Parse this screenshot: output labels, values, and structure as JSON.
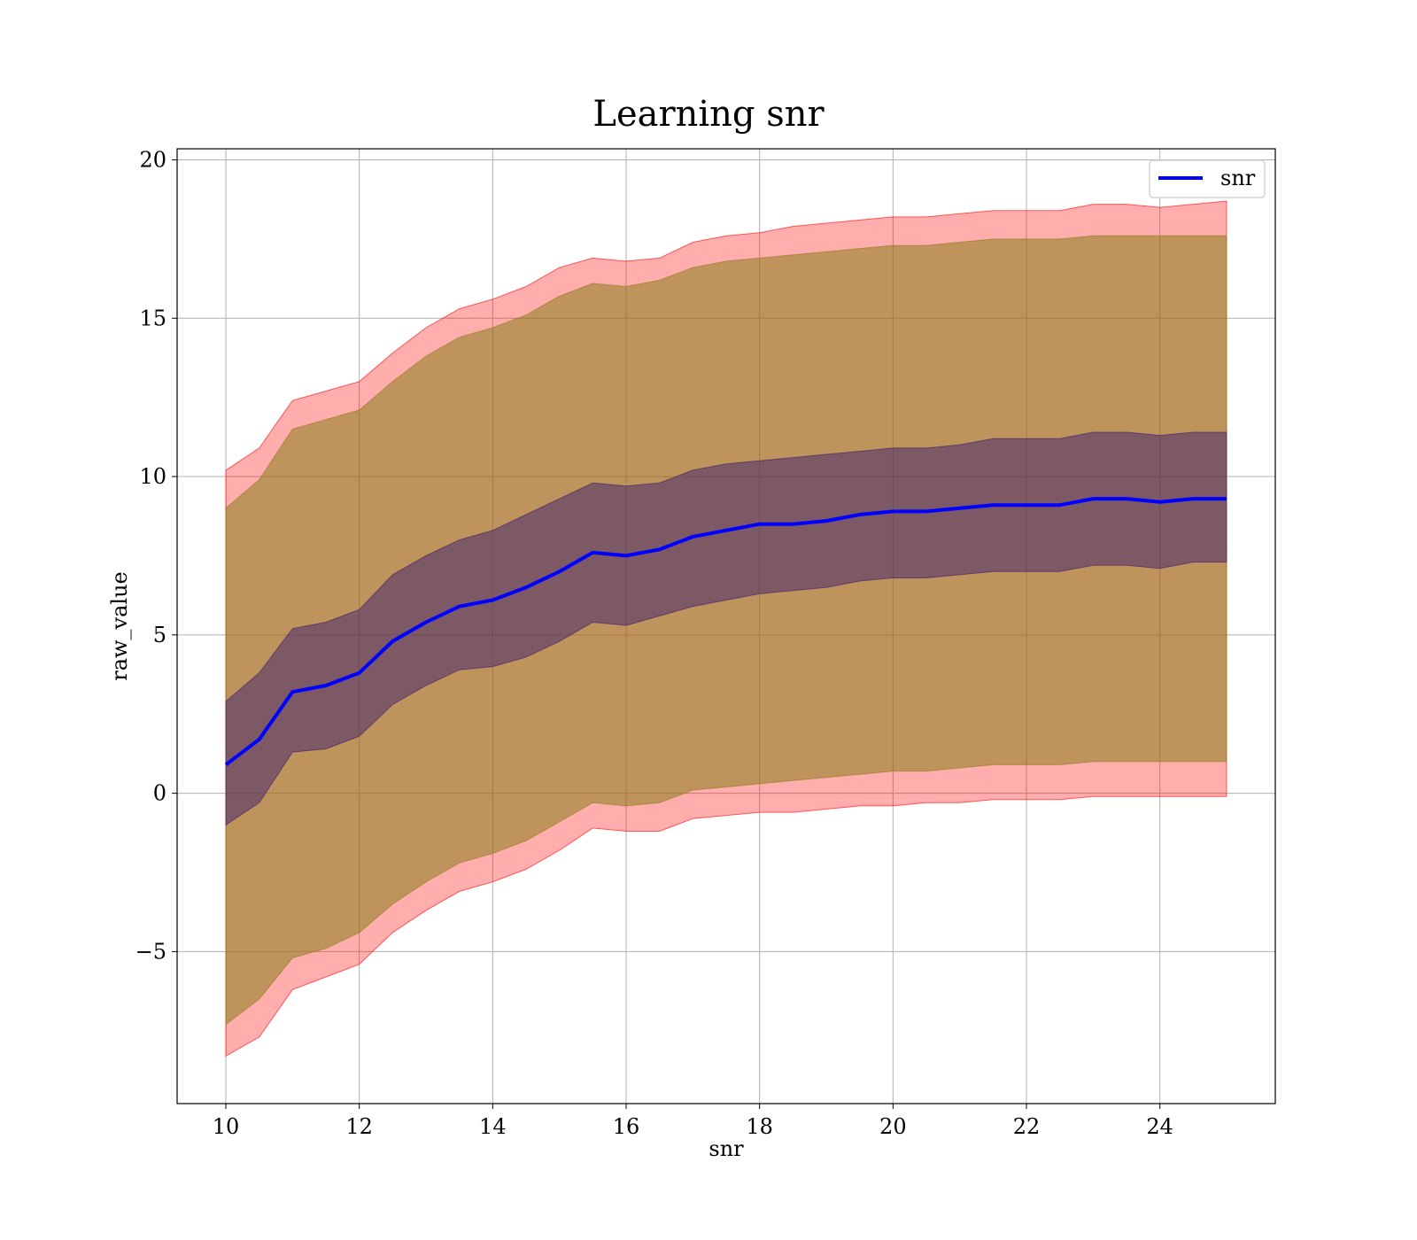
{
  "chart_data": {
    "type": "line",
    "title": "Learning snr",
    "xlabel": "snr",
    "ylabel": "raw_value",
    "xlim": [
      9.27,
      25.73
    ],
    "ylim": [
      -9.8,
      20.35
    ],
    "xticks": [
      10,
      12,
      14,
      16,
      18,
      20,
      22,
      24
    ],
    "yticks": [
      {
        "value": -5,
        "label": "−5"
      },
      {
        "value": 0,
        "label": "0"
      },
      {
        "value": 5,
        "label": "5"
      },
      {
        "value": 10,
        "label": "10"
      },
      {
        "value": 15,
        "label": "15"
      },
      {
        "value": 20,
        "label": "20"
      }
    ],
    "grid": true,
    "legend": {
      "position": "top-right",
      "entries": [
        "snr"
      ]
    },
    "colors": {
      "line": "#0000ff",
      "band_outer": "#ff0000",
      "band_mid": "#8b7d1a",
      "band_inner": "#3b1e6e"
    },
    "x": [
      10.0,
      10.5,
      11.0,
      11.5,
      12.0,
      12.5,
      13.0,
      13.5,
      14.0,
      14.5,
      15.0,
      15.5,
      16.0,
      16.5,
      17.0,
      17.5,
      18.0,
      18.5,
      19.0,
      19.5,
      20.0,
      20.5,
      21.0,
      21.5,
      22.0,
      22.5,
      23.0,
      23.5,
      24.0,
      24.5,
      25.0
    ],
    "series": [
      {
        "name": "snr",
        "values": [
          0.9,
          1.7,
          3.2,
          3.4,
          3.8,
          4.8,
          5.4,
          5.9,
          6.1,
          6.5,
          7.0,
          7.6,
          7.5,
          7.7,
          8.1,
          8.3,
          8.5,
          8.5,
          8.6,
          8.8,
          8.9,
          8.9,
          9.0,
          9.1,
          9.1,
          9.1,
          9.3,
          9.3,
          9.2,
          9.3,
          9.3
        ]
      }
    ],
    "bands": [
      {
        "role": "outer",
        "upper": [
          10.2,
          10.9,
          12.4,
          12.7,
          13.0,
          13.9,
          14.7,
          15.3,
          15.6,
          16.0,
          16.6,
          16.9,
          16.8,
          16.9,
          17.4,
          17.6,
          17.7,
          17.9,
          18.0,
          18.1,
          18.2,
          18.2,
          18.3,
          18.4,
          18.4,
          18.4,
          18.6,
          18.6,
          18.5,
          18.6,
          18.7
        ],
        "lower": [
          -8.3,
          -7.7,
          -6.2,
          -5.8,
          -5.4,
          -4.4,
          -3.7,
          -3.1,
          -2.8,
          -2.4,
          -1.8,
          -1.1,
          -1.2,
          -1.2,
          -0.8,
          -0.7,
          -0.6,
          -0.6,
          -0.5,
          -0.4,
          -0.4,
          -0.3,
          -0.3,
          -0.2,
          -0.2,
          -0.2,
          -0.1,
          -0.1,
          -0.1,
          -0.1,
          -0.1
        ]
      },
      {
        "role": "mid",
        "upper": [
          9.0,
          9.9,
          11.5,
          11.8,
          12.1,
          13.0,
          13.8,
          14.4,
          14.7,
          15.1,
          15.7,
          16.1,
          16.0,
          16.2,
          16.6,
          16.8,
          16.9,
          17.0,
          17.1,
          17.2,
          17.3,
          17.3,
          17.4,
          17.5,
          17.5,
          17.5,
          17.6,
          17.6,
          17.6,
          17.6,
          17.6
        ],
        "lower": [
          -7.3,
          -6.5,
          -5.2,
          -4.9,
          -4.4,
          -3.5,
          -2.8,
          -2.2,
          -1.9,
          -1.5,
          -0.9,
          -0.3,
          -0.4,
          -0.3,
          0.1,
          0.2,
          0.3,
          0.4,
          0.5,
          0.6,
          0.7,
          0.7,
          0.8,
          0.9,
          0.9,
          0.9,
          1.0,
          1.0,
          1.0,
          1.0,
          1.0
        ]
      },
      {
        "role": "inner",
        "upper": [
          2.9,
          3.8,
          5.2,
          5.4,
          5.8,
          6.9,
          7.5,
          8.0,
          8.3,
          8.8,
          9.3,
          9.8,
          9.7,
          9.8,
          10.2,
          10.4,
          10.5,
          10.6,
          10.7,
          10.8,
          10.9,
          10.9,
          11.0,
          11.2,
          11.2,
          11.2,
          11.4,
          11.4,
          11.3,
          11.4,
          11.4
        ],
        "lower": [
          -1.0,
          -0.3,
          1.3,
          1.4,
          1.8,
          2.8,
          3.4,
          3.9,
          4.0,
          4.3,
          4.8,
          5.4,
          5.3,
          5.6,
          5.9,
          6.1,
          6.3,
          6.4,
          6.5,
          6.7,
          6.8,
          6.8,
          6.9,
          7.0,
          7.0,
          7.0,
          7.2,
          7.2,
          7.1,
          7.3,
          7.3
        ]
      }
    ]
  }
}
